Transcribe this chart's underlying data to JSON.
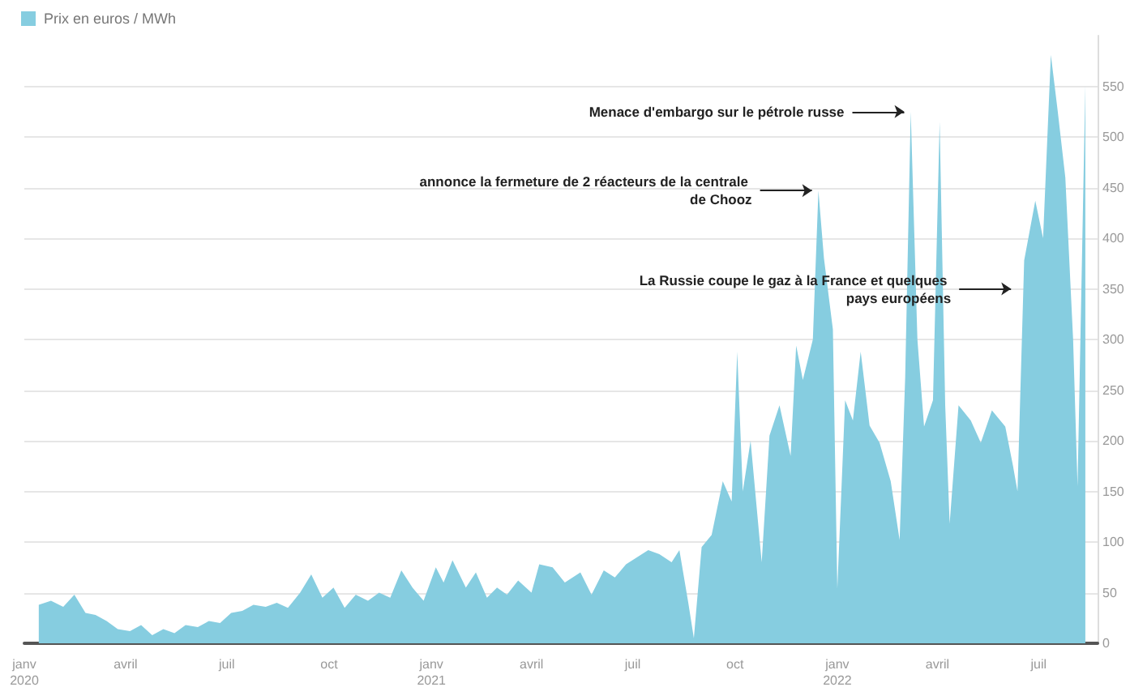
{
  "chart_data": {
    "type": "area",
    "legend": "top left",
    "grid": "y",
    "marker": "none",
    "x": [
      "2020-01-14",
      "2020-01-25",
      "2020-02-05",
      "2020-02-15",
      "2020-02-25",
      "2020-03-05",
      "2020-03-15",
      "2020-03-25",
      "2020-04-05",
      "2020-04-15",
      "2020-04-25",
      "2020-05-05",
      "2020-05-15",
      "2020-05-25",
      "2020-06-05",
      "2020-06-15",
      "2020-06-25",
      "2020-07-05",
      "2020-07-15",
      "2020-07-25",
      "2020-08-05",
      "2020-08-15",
      "2020-08-25",
      "2020-09-05",
      "2020-09-15",
      "2020-09-25",
      "2020-10-05",
      "2020-10-15",
      "2020-10-25",
      "2020-11-05",
      "2020-11-15",
      "2020-11-25",
      "2020-12-05",
      "2020-12-15",
      "2020-12-25",
      "2021-01-05",
      "2021-01-12",
      "2021-01-20",
      "2021-02-01",
      "2021-02-10",
      "2021-02-20",
      "2021-03-01",
      "2021-03-10",
      "2021-03-20",
      "2021-04-01",
      "2021-04-08",
      "2021-04-20",
      "2021-05-01",
      "2021-05-15",
      "2021-05-25",
      "2021-06-05",
      "2021-06-15",
      "2021-06-25",
      "2021-07-05",
      "2021-07-15",
      "2021-07-25",
      "2021-08-05",
      "2021-08-12",
      "2021-08-20",
      "2021-08-25",
      "2021-09-01",
      "2021-09-10",
      "2021-09-20",
      "2021-09-28",
      "2021-10-03",
      "2021-10-08",
      "2021-10-15",
      "2021-10-25",
      "2021-11-01",
      "2021-11-10",
      "2021-11-20",
      "2021-11-25",
      "2021-12-01",
      "2021-12-10",
      "2021-12-15",
      "2021-12-20",
      "2021-12-28",
      "2022-01-01",
      "2022-01-08",
      "2022-01-15",
      "2022-01-22",
      "2022-01-30",
      "2022-02-08",
      "2022-02-18",
      "2022-02-26",
      "2022-03-03",
      "2022-03-08",
      "2022-03-14",
      "2022-03-20",
      "2022-03-28",
      "2022-04-03",
      "2022-04-08",
      "2022-04-12",
      "2022-04-20",
      "2022-05-01",
      "2022-05-10",
      "2022-05-20",
      "2022-06-01",
      "2022-06-08",
      "2022-06-12",
      "2022-06-18",
      "2022-06-28",
      "2022-07-05",
      "2022-07-12",
      "2022-07-18",
      "2022-07-25",
      "2022-08-01",
      "2022-08-05",
      "2022-08-12"
    ],
    "series": [
      {
        "name": "Prix en euros / MWh",
        "color": "#86cde0",
        "values": [
          38,
          42,
          36,
          48,
          30,
          28,
          22,
          14,
          12,
          18,
          8,
          14,
          10,
          18,
          16,
          22,
          20,
          30,
          32,
          38,
          36,
          40,
          35,
          50,
          68,
          45,
          55,
          35,
          48,
          42,
          50,
          45,
          72,
          55,
          42,
          75,
          60,
          82,
          55,
          70,
          45,
          55,
          48,
          62,
          50,
          78,
          75,
          60,
          70,
          48,
          72,
          65,
          78,
          85,
          92,
          88,
          80,
          92,
          40,
          5,
          95,
          107,
          160,
          140,
          288,
          150,
          200,
          80,
          205,
          235,
          185,
          294,
          260,
          300,
          447,
          380,
          310,
          54,
          240,
          220,
          288,
          215,
          198,
          160,
          102,
          262,
          525,
          300,
          214,
          240,
          515,
          235,
          118,
          235,
          220,
          198,
          230,
          214,
          175,
          150,
          378,
          437,
          400,
          581,
          527,
          460,
          300,
          155,
          551
        ]
      }
    ],
    "xlim": [
      "2020-01-01",
      "2022-08-23"
    ],
    "xticks": [
      {
        "value": "2020-01-01",
        "label": "janv\n2020"
      },
      {
        "value": "2020-04-01",
        "label": "avril"
      },
      {
        "value": "2020-07-01",
        "label": "juil"
      },
      {
        "value": "2020-10-01",
        "label": "oct"
      },
      {
        "value": "2021-01-01",
        "label": "janv\n2021"
      },
      {
        "value": "2021-04-01",
        "label": "avril"
      },
      {
        "value": "2021-07-01",
        "label": "juil"
      },
      {
        "value": "2021-10-01",
        "label": "oct"
      },
      {
        "value": "2022-01-01",
        "label": "janv\n2022"
      },
      {
        "value": "2022-04-01",
        "label": "avril"
      },
      {
        "value": "2022-07-01",
        "label": "juil"
      }
    ],
    "ylim": [
      0,
      600
    ],
    "yticks": [
      0,
      50,
      100,
      150,
      200,
      250,
      300,
      350,
      400,
      450,
      500,
      550
    ],
    "annotations": [
      {
        "text": "Menace d'embargo sur le pétrole russe",
        "x": "2022-03-08",
        "y": 525
      },
      {
        "text": "annonce la fermeture de 2 réacteurs de la centrale de Chooz",
        "x": "2021-12-15",
        "y": 447
      },
      {
        "text": "La Russie coupe le gaz à la France et quelques pays européens",
        "x": "2022-06-12",
        "y": 350
      }
    ]
  }
}
